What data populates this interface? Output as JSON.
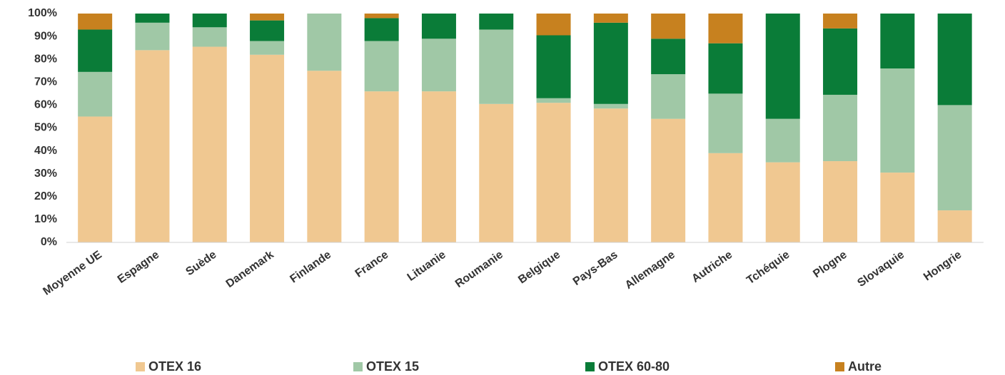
{
  "chart_data": {
    "type": "stacked_bar",
    "categories": [
      "Moyenne UE",
      "Espagne",
      "Suède",
      "Danemark",
      "Finlande",
      "France",
      "Lituanie",
      "Roumanie",
      "Belgique",
      "Pays-Bas",
      "Allemagne",
      "Autriche",
      "Tchéquie",
      "Plogne",
      "Slovaquie",
      "Hongrie"
    ],
    "series": [
      {
        "name": "OTEX 16",
        "color": "#f0c891",
        "values": [
          55,
          84,
          85.5,
          82,
          75,
          66,
          66,
          60.5,
          61,
          58.5,
          54,
          39,
          35,
          35.5,
          30.5,
          14
        ]
      },
      {
        "name": "OTEX 15",
        "color": "#a0c8a6",
        "values": [
          19.5,
          12,
          8.5,
          6,
          25,
          22,
          23,
          32.5,
          2,
          2,
          19.5,
          26,
          19,
          29,
          45.5,
          46
        ]
      },
      {
        "name": "OTEX 60-80",
        "color": "#0a7c38",
        "values": [
          18.5,
          4,
          6,
          9,
          0,
          10,
          11,
          7,
          27.5,
          35.5,
          15.5,
          22,
          46,
          29,
          24,
          40
        ]
      },
      {
        "name": "Autre",
        "color": "#c7811f",
        "values": [
          7,
          0,
          0,
          3,
          0,
          2,
          0,
          0,
          9.5,
          4,
          11,
          13,
          0,
          6.5,
          0,
          0
        ]
      }
    ],
    "ylim": [
      0,
      100
    ],
    "yticks": [
      {
        "value": 0,
        "label": "0%"
      },
      {
        "value": 10,
        "label": "10%"
      },
      {
        "value": 20,
        "label": "20%"
      },
      {
        "value": 30,
        "label": "30%"
      },
      {
        "value": 40,
        "label": "40%"
      },
      {
        "value": 50,
        "label": "50%"
      },
      {
        "value": 60,
        "label": "60%"
      },
      {
        "value": 70,
        "label": "70%"
      },
      {
        "value": 80,
        "label": "80%"
      },
      {
        "value": 90,
        "label": "90%"
      },
      {
        "value": 100,
        "label": "100%"
      }
    ],
    "grid": false,
    "legend": "bottom"
  }
}
